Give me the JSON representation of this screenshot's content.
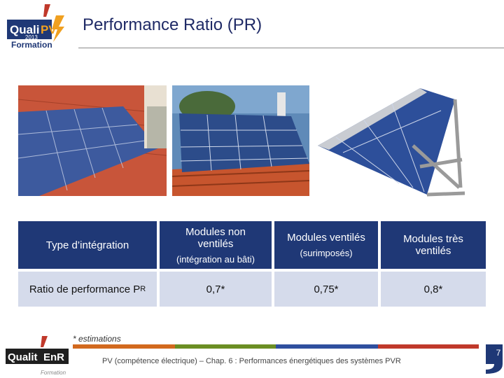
{
  "header": {
    "title": "Performance Ratio (PR)",
    "logo": {
      "brand_a": "Quali",
      "brand_b": "PV",
      "year": "2013",
      "sub": "Formation"
    }
  },
  "photos": [
    {
      "name": "roof-integrated-panels-photo"
    },
    {
      "name": "roof-mounted-panels-photo"
    },
    {
      "name": "ground-frame-panels-photo"
    }
  ],
  "table": {
    "header": {
      "label": "Type d’intégration",
      "col1_line1": "Modules non",
      "col1_line2": "ventilés",
      "col1_sub": "(intégration au bâti)",
      "col2_main": "Modules ventilés",
      "col2_sub": "(surimposés)",
      "col3_line1": "Modules très",
      "col3_line2": "ventilés"
    },
    "row": {
      "label": "Ratio de performance P",
      "label_sub": "R",
      "v1": "0,7*",
      "v2": "0,75*",
      "v3": "0,8*"
    }
  },
  "note": "* estimations",
  "footer": {
    "text": "PV (compétence électrique) – Chap. 6 : Performances énergétiques des systèmes PVR",
    "page": "7",
    "logo": {
      "brand_a": "Qualit",
      "brand_b": "EnR",
      "sub": "Formation"
    }
  },
  "colors": {
    "navy": "#1f3876",
    "light_blue": "#d5dbeb",
    "title": "#1f2a66",
    "bar_orange": "#d2691e",
    "bar_green": "#6b8e23",
    "bar_blue": "#2f4f9f",
    "bar_red": "#c0392b"
  }
}
